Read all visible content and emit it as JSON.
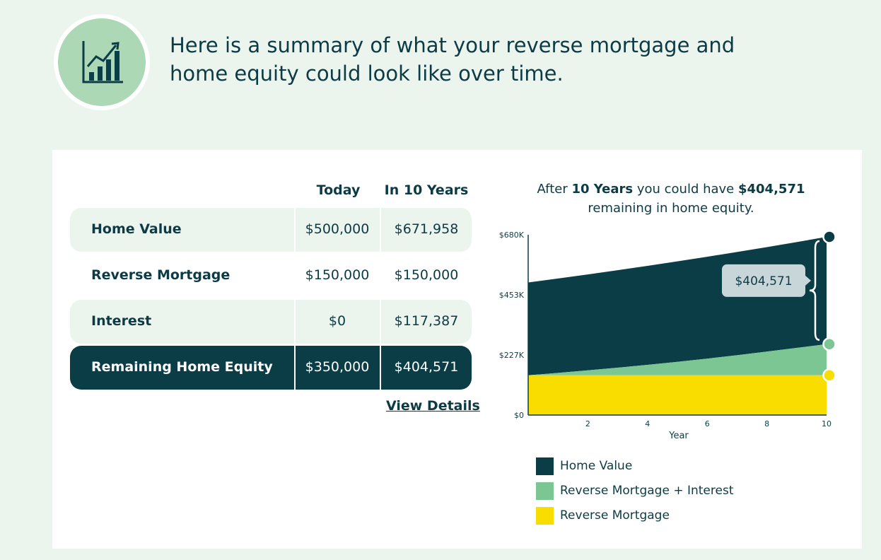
{
  "header": {
    "headline_line1": "Here is a summary of what your reverse mortgage and",
    "headline_line2": "home equity could look like over time.",
    "icon": "bar-chart-growth-icon"
  },
  "table": {
    "col_today": "Today",
    "col_future": "In 10 Years",
    "rows": [
      {
        "label": "Home Value",
        "today": "$500,000",
        "future": "$671,958"
      },
      {
        "label": "Reverse Mortgage",
        "today": "$150,000",
        "future": "$150,000"
      },
      {
        "label": "Interest",
        "today": "$0",
        "future": "$117,387"
      },
      {
        "label": "Remaining Home Equity",
        "today": "$350,000",
        "future": "$404,571"
      }
    ],
    "view_details": "View Details"
  },
  "caption": {
    "pre": "After ",
    "years": "10 Years",
    "mid": " you could have ",
    "amount": "$404,571",
    "post": "remaining in home equity."
  },
  "chart_data": {
    "type": "area",
    "xlabel": "Year",
    "x_ticks": [
      2,
      4,
      6,
      8,
      10
    ],
    "xlim": [
      0,
      10
    ],
    "y_tick_values": [
      0,
      226667,
      453333,
      680000
    ],
    "y_tick_labels": [
      "$0",
      "$227K",
      "$453K",
      "$680K"
    ],
    "ylim": [
      0,
      680000
    ],
    "x": [
      0,
      1,
      2,
      3,
      4,
      5,
      6,
      7,
      8,
      9,
      10
    ],
    "series": [
      {
        "name": "Home Value",
        "color": "#0b3d47",
        "values": [
          500000,
          515000,
          530450,
          546364,
          562754,
          579637,
          597026,
          614937,
          633385,
          652386,
          671958
        ]
      },
      {
        "name": "Reverse Mortgage + Interest",
        "color": "#7bc692",
        "values": [
          150000,
          159000,
          168540,
          178652,
          189372,
          200734,
          212778,
          225545,
          239077,
          253422,
          267387
        ]
      },
      {
        "name": "Reverse Mortgage",
        "color": "#fadd00",
        "values": [
          150000,
          150000,
          150000,
          150000,
          150000,
          150000,
          150000,
          150000,
          150000,
          150000,
          150000
        ]
      }
    ],
    "callout": "$404,571",
    "grid": false
  }
}
